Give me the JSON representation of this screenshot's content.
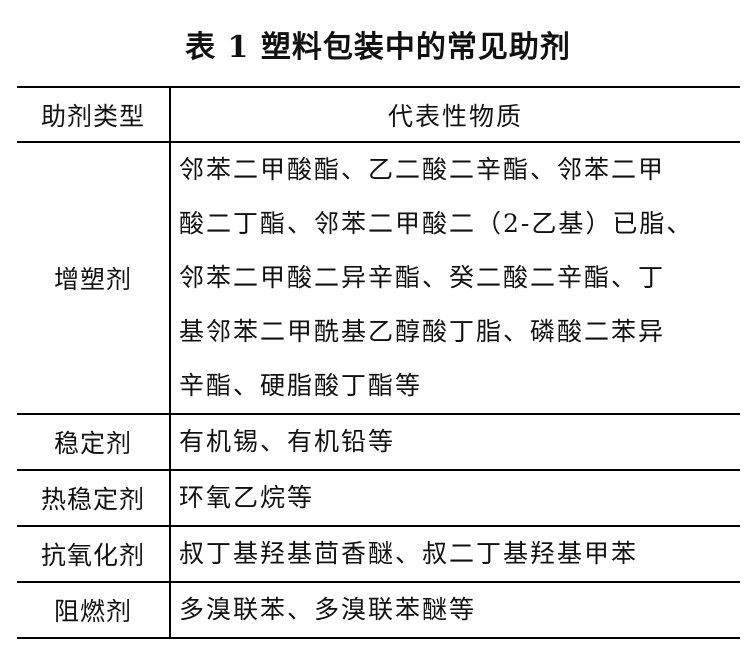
{
  "title": "表 1  塑料包装中的常见助剂",
  "table": {
    "headers": [
      "助剂类型",
      "代表性物质"
    ],
    "rows": [
      {
        "type": "增塑剂",
        "lines": [
          "邻苯二甲酸酯、乙二酸二辛酯、邻苯二甲",
          "酸二丁酯、邻苯二甲酸二（2-乙基）已脂、",
          "邻苯二甲酸二异辛酯、癸二酸二辛酯、丁",
          "基邻苯二甲酰基乙醇酸丁脂、磷酸二苯异",
          "辛酯、硬脂酸丁酯等"
        ]
      },
      {
        "type": "稳定剂",
        "lines": [
          "有机锡、有机铅等"
        ]
      },
      {
        "type": "热稳定剂",
        "lines": [
          "环氧乙烷等"
        ]
      },
      {
        "type": "抗氧化剂",
        "lines": [
          "叔丁基羟基茴香醚、叔二丁基羟基甲苯"
        ]
      },
      {
        "type": "阻燃剂",
        "lines": [
          "多溴联苯、多溴联苯醚等"
        ]
      }
    ]
  }
}
